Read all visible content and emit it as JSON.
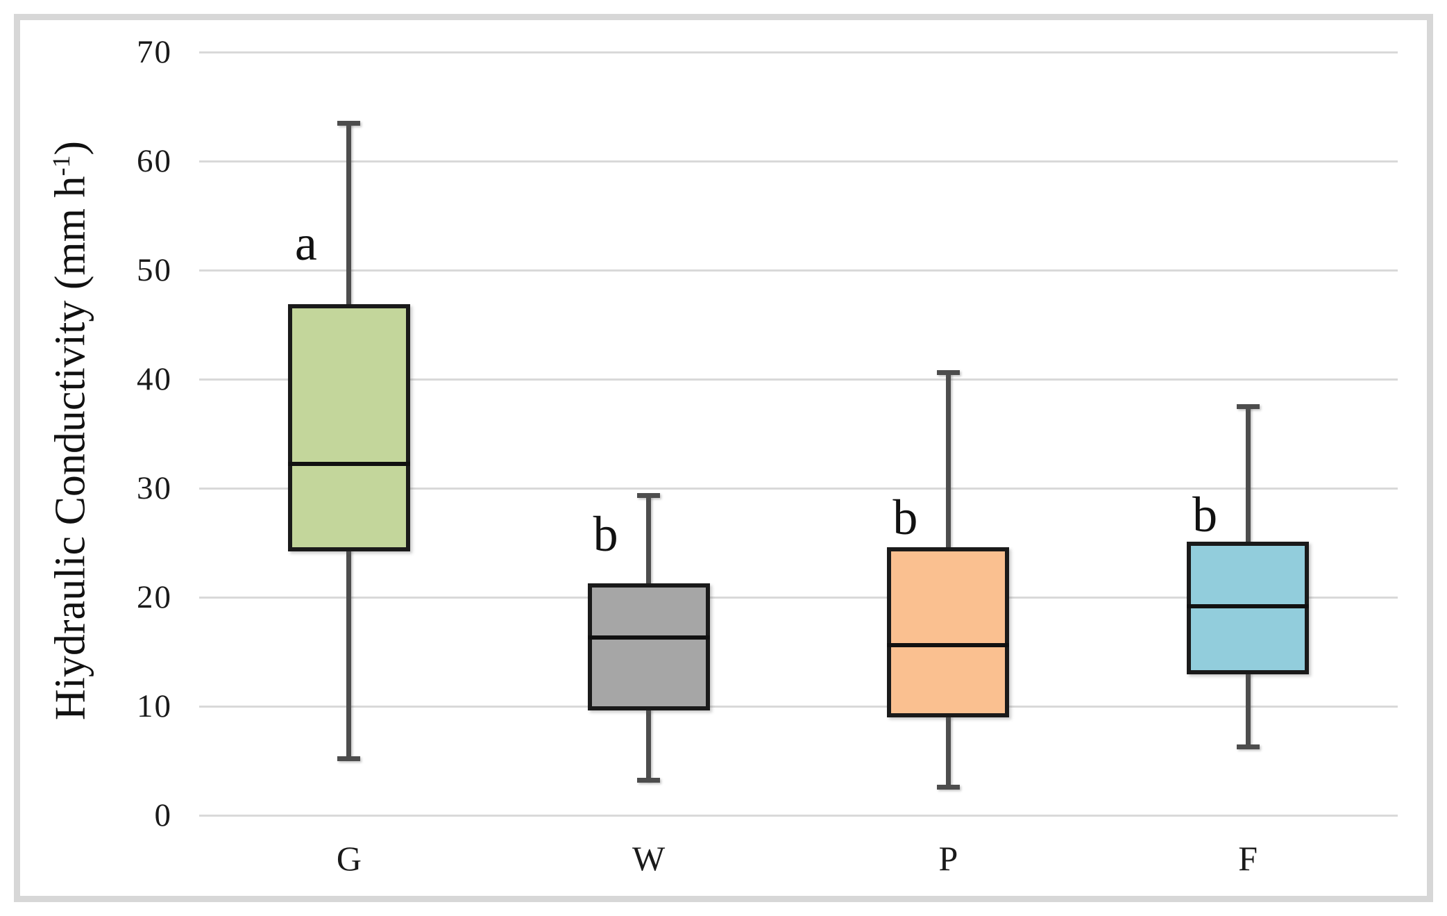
{
  "chart_data": {
    "type": "box",
    "title": "",
    "xlabel": "",
    "ylabel": "Hiydraulic Conductivity (mm h⁻¹)",
    "ylabel_parts": {
      "pre": "Hiydraulic Conductivity (mm h",
      "sup": "-1",
      "post": ")"
    },
    "ylim": [
      0,
      70
    ],
    "yticks": [
      0,
      10,
      20,
      30,
      40,
      50,
      60,
      70
    ],
    "grid": true,
    "legend": false,
    "categories": [
      "G",
      "W",
      "P",
      "F"
    ],
    "series": [
      {
        "category": "G",
        "min": 5.2,
        "q1": 24.4,
        "median": 32.2,
        "q3": 46.7,
        "max": 63.5,
        "fill": "#c3d69b",
        "letter": "a",
        "letter_y": 52.5
      },
      {
        "category": "W",
        "min": 3.2,
        "q1": 9.8,
        "median": 16.3,
        "q3": 21.1,
        "max": 29.3,
        "fill": "#a6a6a6",
        "letter": "b",
        "letter_y": 25.8
      },
      {
        "category": "P",
        "min": 2.6,
        "q1": 9.2,
        "median": 15.6,
        "q3": 24.4,
        "max": 40.6,
        "fill": "#fac090",
        "letter": "b",
        "letter_y": 27.3
      },
      {
        "category": "F",
        "min": 6.3,
        "q1": 13.1,
        "median": 19.2,
        "q3": 24.9,
        "max": 37.5,
        "fill": "#92cddc",
        "letter": "b",
        "letter_y": 27.6
      }
    ],
    "colors": {
      "box_border": "#1a1a1a",
      "median_line": "#111111",
      "whisker": "#4d4d4d",
      "gridline": "#d9d9d9",
      "frame_border": "#d7d7d7",
      "background": "#ffffff",
      "text": "#1a1a1a"
    }
  }
}
